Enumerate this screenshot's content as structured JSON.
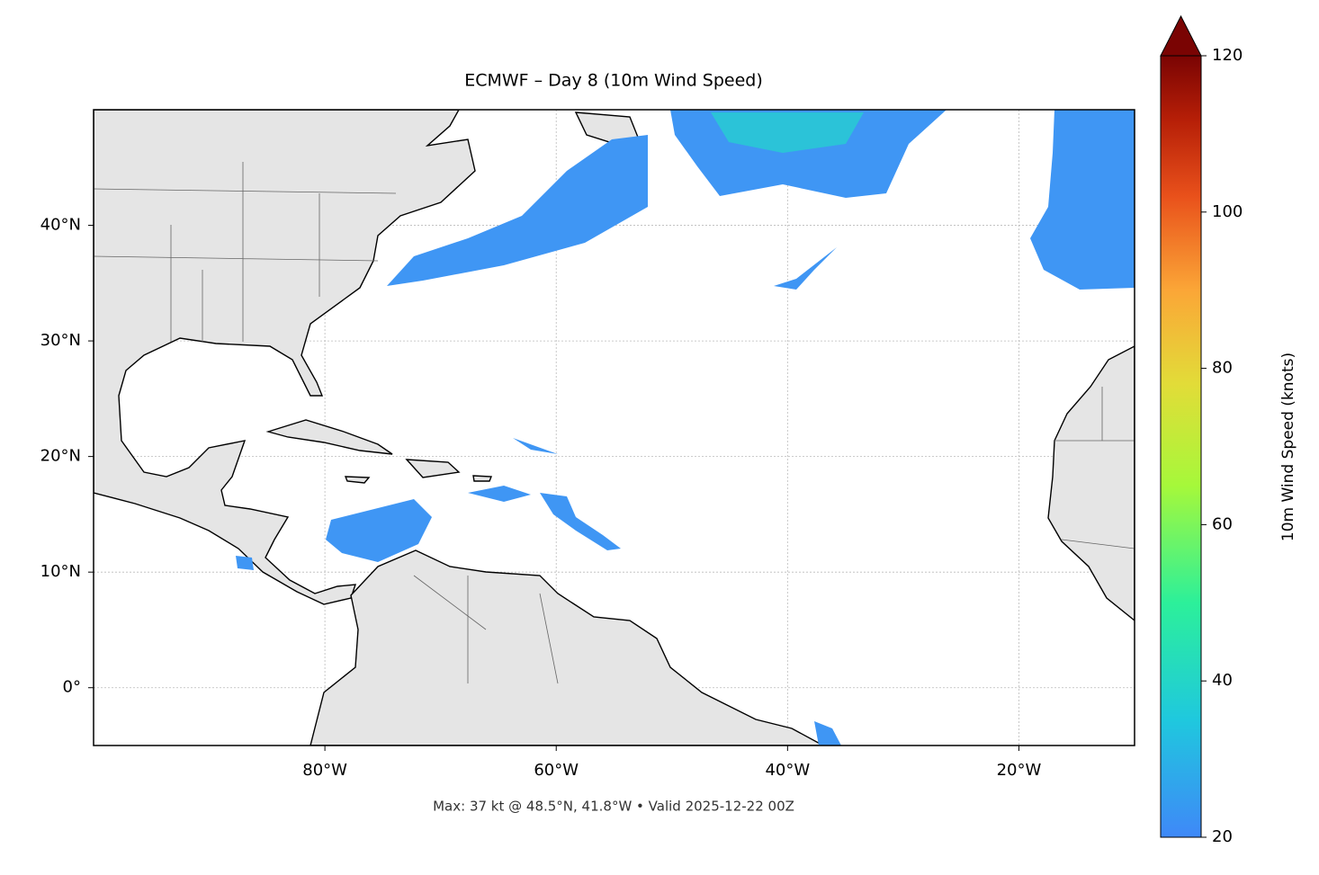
{
  "chart_data": {
    "type": "map",
    "title": "ECMWF – Day 8 (10m Wind Speed)",
    "footer": "Max: 37 kt @ 48.5°N, 41.8°W • Valid 2025-12-22 00Z",
    "xlim": [
      -100,
      -10
    ],
    "ylim": [
      -5,
      50
    ],
    "xticks": [
      {
        "value": -80,
        "label": "80°W"
      },
      {
        "value": -60,
        "label": "60°W"
      },
      {
        "value": -40,
        "label": "40°W"
      },
      {
        "value": -20,
        "label": "20°W"
      }
    ],
    "yticks": [
      {
        "value": 0,
        "label": "0°"
      },
      {
        "value": 10,
        "label": "10°N"
      },
      {
        "value": 20,
        "label": "20°N"
      },
      {
        "value": 30,
        "label": "30°N"
      },
      {
        "value": 40,
        "label": "40°N"
      }
    ],
    "grid": true,
    "colorbar": {
      "label": "10m Wind Speed (knots)",
      "lim": [
        20,
        120
      ],
      "ticks": [
        20,
        40,
        60,
        80,
        100,
        120
      ],
      "extend": "max"
    }
  }
}
